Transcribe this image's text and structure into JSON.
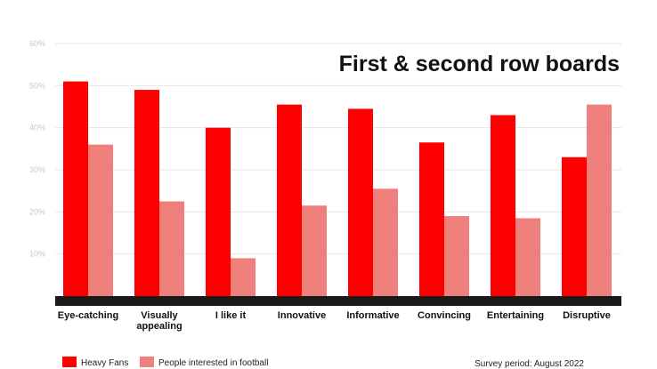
{
  "chart_data": {
    "type": "bar",
    "title": "First & second row boards",
    "categories": [
      "Eye-catching",
      "Visually appealing",
      "I like it",
      "Innovative",
      "Informative",
      "Convincing",
      "Entertaining",
      "Disruptive"
    ],
    "category_lines": [
      [
        "Eye-catching"
      ],
      [
        "Visually",
        "appealing"
      ],
      [
        "I like it"
      ],
      [
        "Innovative"
      ],
      [
        "Informative"
      ],
      [
        "Convincing"
      ],
      [
        "Entertaining"
      ],
      [
        "Disruptive"
      ]
    ],
    "series": [
      {
        "name": "Heavy Fans",
        "color": "#ff0000",
        "values": [
          51,
          49,
          40,
          45.5,
          44.5,
          36.5,
          43,
          33
        ]
      },
      {
        "name": "People interested in football",
        "color": "#ee7f7a",
        "values": [
          36,
          22.5,
          9,
          21.5,
          25.5,
          19,
          18.5,
          45.5
        ]
      }
    ],
    "ylim": [
      0,
      60
    ],
    "yticks": [
      10,
      20,
      30,
      40,
      50,
      60
    ],
    "ytick_labels": [
      "10%",
      "20%",
      "30%",
      "40%",
      "50%",
      "60%"
    ],
    "xlabel": "",
    "ylabel": "",
    "grid": true,
    "legend_position": "bottom-left",
    "baseline_color": "#1a1a1a"
  },
  "footnote": "Survey period: August 2022"
}
